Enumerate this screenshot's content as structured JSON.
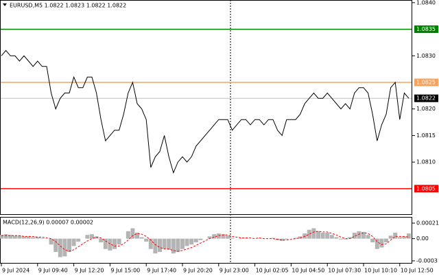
{
  "chart_data": [
    {
      "type": "line",
      "title": "EURUSD,M5  1.0822 1.0823 1.0822 1.0822",
      "categories": [
        "9 Jul 2024",
        null,
        null,
        null,
        null,
        null,
        null,
        null,
        "9 Jul 09:40",
        null,
        null,
        null,
        null,
        null,
        null,
        null,
        "9 Jul 12:20",
        null,
        null,
        null,
        null,
        null,
        null,
        null,
        "9 Jul 15:00",
        null,
        null,
        null,
        null,
        null,
        null,
        null,
        "9 Jul 17:40",
        null,
        null,
        null,
        null,
        null,
        null,
        null,
        "9 Jul 20:20",
        null,
        null,
        null,
        null,
        null,
        null,
        null,
        "9 Jul 23:00",
        null,
        null,
        null,
        null,
        null,
        null,
        null,
        "10 Jul 02:05",
        null,
        null,
        null,
        null,
        null,
        null,
        null,
        "10 Jul 04:50",
        null,
        null,
        null,
        null,
        null,
        null,
        null,
        "10 Jul 07:30",
        null,
        null,
        null,
        null,
        null,
        null,
        null,
        "10 Jul 10:10",
        null,
        null,
        null,
        null,
        null,
        null,
        null,
        "10 Jul 12:50",
        null,
        null
      ],
      "values": [
        1.083,
        1.0831,
        1.083,
        1.083,
        1.0829,
        1.083,
        1.0829,
        1.0828,
        1.0829,
        1.0828,
        1.0828,
        1.0823,
        1.082,
        1.0822,
        1.0823,
        1.0823,
        1.0826,
        1.0824,
        1.0824,
        1.0826,
        1.0826,
        1.0823,
        1.0818,
        1.0814,
        1.0815,
        1.0816,
        1.0816,
        1.0819,
        1.0823,
        1.0825,
        1.0821,
        1.082,
        1.0818,
        1.0809,
        1.0811,
        1.0812,
        1.0815,
        1.0811,
        1.0808,
        1.081,
        1.0811,
        1.081,
        1.0811,
        1.0813,
        1.0814,
        1.0815,
        1.0816,
        1.0817,
        1.0818,
        1.0818,
        1.0818,
        1.0816,
        1.0817,
        1.0818,
        1.0818,
        1.0817,
        1.0818,
        1.0818,
        1.0817,
        1.0818,
        1.0818,
        1.0816,
        1.0815,
        1.0818,
        1.0818,
        1.0818,
        1.0819,
        1.0821,
        1.0822,
        1.0823,
        1.0822,
        1.0822,
        1.0823,
        1.0822,
        1.0821,
        1.082,
        1.0821,
        1.082,
        1.0823,
        1.0824,
        1.0824,
        1.0823,
        1.0819,
        1.0814,
        1.0817,
        1.0819,
        1.0824,
        1.0825,
        1.0818,
        1.0823,
        1.0822
      ],
      "color": "#000000",
      "ylim": [
        1.08002,
        1.08405
      ],
      "yticks": [
        {
          "value": 1.084,
          "label": "1.0840"
        },
        {
          "value": 1.083,
          "label": "1.0830"
        },
        {
          "value": 1.082,
          "label": "1.0820"
        },
        1.0815,
        {
          "value": 1.081,
          "label": "1.0810"
        }
      ],
      "levels": [
        1.0835,
        1.0825,
        1.0805
      ],
      "level_colors": [
        "#008000",
        "#f4a460",
        "#ff0000"
      ],
      "last_price": 1.0822
    },
    {
      "type": "macd",
      "title": "MACD(12,26,9) 0.00007 0.00002",
      "histogram": [
        5e-05,
        6e-05,
        5e-05,
        4e-05,
        4e-05,
        3e-05,
        3e-05,
        2e-05,
        2e-05,
        1e-05,
        0,
        -8e-05,
        -0.00018,
        -0.00025,
        -0.00024,
        -0.00018,
        -0.0001,
        -4e-05,
        0,
        5e-05,
        6e-05,
        3e-05,
        -5e-05,
        -0.00014,
        -0.00016,
        -0.00014,
        -8e-05,
        0,
        0.0001,
        0.00014,
        8e-05,
        2e-05,
        -4e-05,
        -0.00014,
        -0.0002,
        -0.00018,
        -0.00014,
        -0.00015,
        -0.0002,
        -0.00018,
        -0.00014,
        -0.0001,
        -8e-05,
        -5e-05,
        -2e-05,
        0,
        3e-05,
        6e-05,
        7e-05,
        6e-05,
        4e-05,
        1e-05,
        0,
        1e-05,
        1e-05,
        0,
        0,
        1e-05,
        0,
        0,
        1e-05,
        -2e-05,
        -3e-05,
        -1e-05,
        0,
        1e-05,
        3e-05,
        7e-05,
        0.00012,
        0.00014,
        0.0001,
        8e-05,
        8e-05,
        5e-05,
        2e-05,
        -1e-05,
        -1e-05,
        2e-05,
        8e-05,
        0.0001,
        9e-05,
        5e-05,
        -5e-05,
        -0.00014,
        -0.00012,
        -5e-05,
        4e-05,
        8e-05,
        2e-05,
        3e-05,
        7e-05
      ],
      "signal": [
        4e-05,
        4e-05,
        4e-05,
        4e-05,
        4e-05,
        3e-05,
        3e-05,
        3e-05,
        2e-05,
        2e-05,
        1e-05,
        0,
        -4e-05,
        -0.0001,
        -0.00015,
        -0.00017,
        -0.00015,
        -0.00011,
        -7e-05,
        -3e-05,
        0,
        2e-05,
        1e-05,
        -3e-05,
        -7e-05,
        -0.0001,
        -0.0001,
        -7e-05,
        -2e-05,
        4e-05,
        7e-05,
        6e-05,
        3e-05,
        -2e-05,
        -8e-05,
        -0.00012,
        -0.00014,
        -0.00014,
        -0.00016,
        -0.00017,
        -0.00016,
        -0.00014,
        -0.00012,
        -9e-05,
        -6e-05,
        -3e-05,
        0,
        2e-05,
        4e-05,
        5e-05,
        5e-05,
        3e-05,
        2e-05,
        1e-05,
        1e-05,
        1e-05,
        0,
        1e-05,
        0,
        0,
        0,
        -1e-05,
        -2e-05,
        -2e-05,
        -1e-05,
        0,
        1e-05,
        3e-05,
        6e-05,
        9e-05,
        0.0001,
        9e-05,
        9e-05,
        7e-05,
        5e-05,
        2e-05,
        0,
        0,
        3e-05,
        6e-05,
        8e-05,
        7e-05,
        3e-05,
        -4e-05,
        -8e-05,
        -7e-05,
        -2e-05,
        3e-05,
        3e-05,
        3e-05,
        2e-05
      ],
      "histogram_color": "#b4b4b4",
      "signal_color": "#ff0000",
      "ylim": [
        -0.0003,
        0.00021
      ],
      "yticks": [
        0.00021,
        {
          "value": 0,
          "label": "0.00"
        },
        -0.0003
      ]
    }
  ]
}
